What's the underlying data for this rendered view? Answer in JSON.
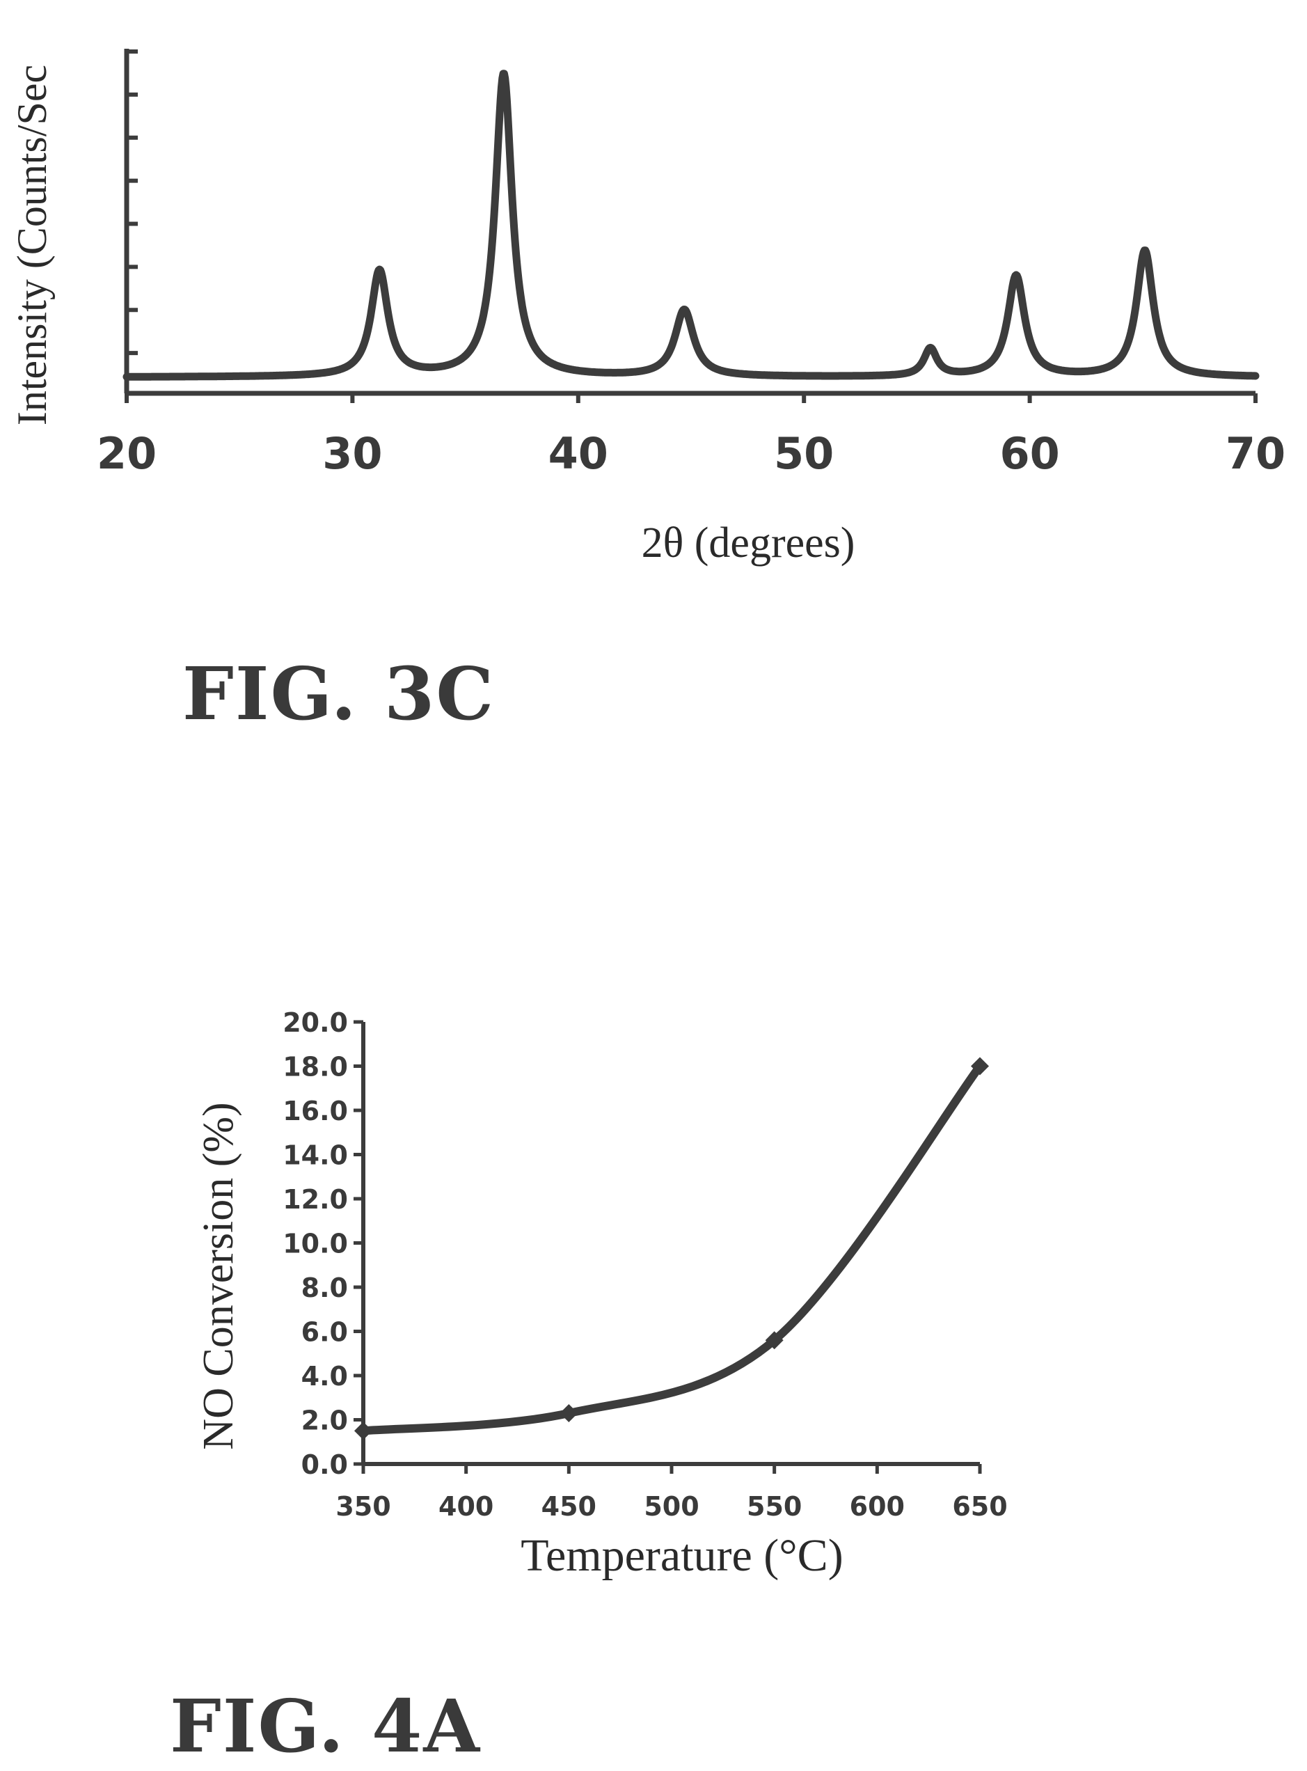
{
  "figures": [
    {
      "label": "FIG. 3C",
      "chart_data": {
        "type": "line",
        "xlabel": "2θ (degrees)",
        "ylabel": "Intensity (Counts/Sec",
        "xlim": [
          20,
          70
        ],
        "xticks": [
          "20",
          "30",
          "40",
          "50",
          "60",
          "70"
        ],
        "y_tick_count": 8,
        "y_tick_labels_shown": false,
        "baseline": 0.35,
        "ylim": [
          0,
          7.5
        ],
        "peaks": [
          {
            "x": 31.2,
            "height": 2.3,
            "width": 0.45
          },
          {
            "x": 36.7,
            "height": 6.6,
            "width": 0.45
          },
          {
            "x": 44.7,
            "height": 1.45,
            "width": 0.5
          },
          {
            "x": 55.6,
            "height": 0.6,
            "width": 0.35
          },
          {
            "x": 59.4,
            "height": 2.2,
            "width": 0.45
          },
          {
            "x": 65.1,
            "height": 2.75,
            "width": 0.45
          }
        ],
        "grid": false,
        "color": "#3c3c3c"
      }
    },
    {
      "label": "FIG. 4A",
      "chart_data": {
        "type": "line",
        "xlabel": "Temperature (°C)",
        "ylabel": "NO Conversion (%)",
        "xlim": [
          350,
          650
        ],
        "ylim": [
          0,
          20
        ],
        "xticks": [
          "350",
          "400",
          "450",
          "500",
          "550",
          "600",
          "650"
        ],
        "yticks": [
          "0.0",
          "2.0",
          "4.0",
          "6.0",
          "8.0",
          "10.0",
          "12.0",
          "14.0",
          "16.0",
          "18.0",
          "20.0"
        ],
        "x": [
          350,
          450,
          550,
          650
        ],
        "y": [
          1.5,
          2.3,
          5.6,
          18.0
        ],
        "markers": true,
        "grid": false,
        "color": "#3c3c3c"
      }
    }
  ]
}
